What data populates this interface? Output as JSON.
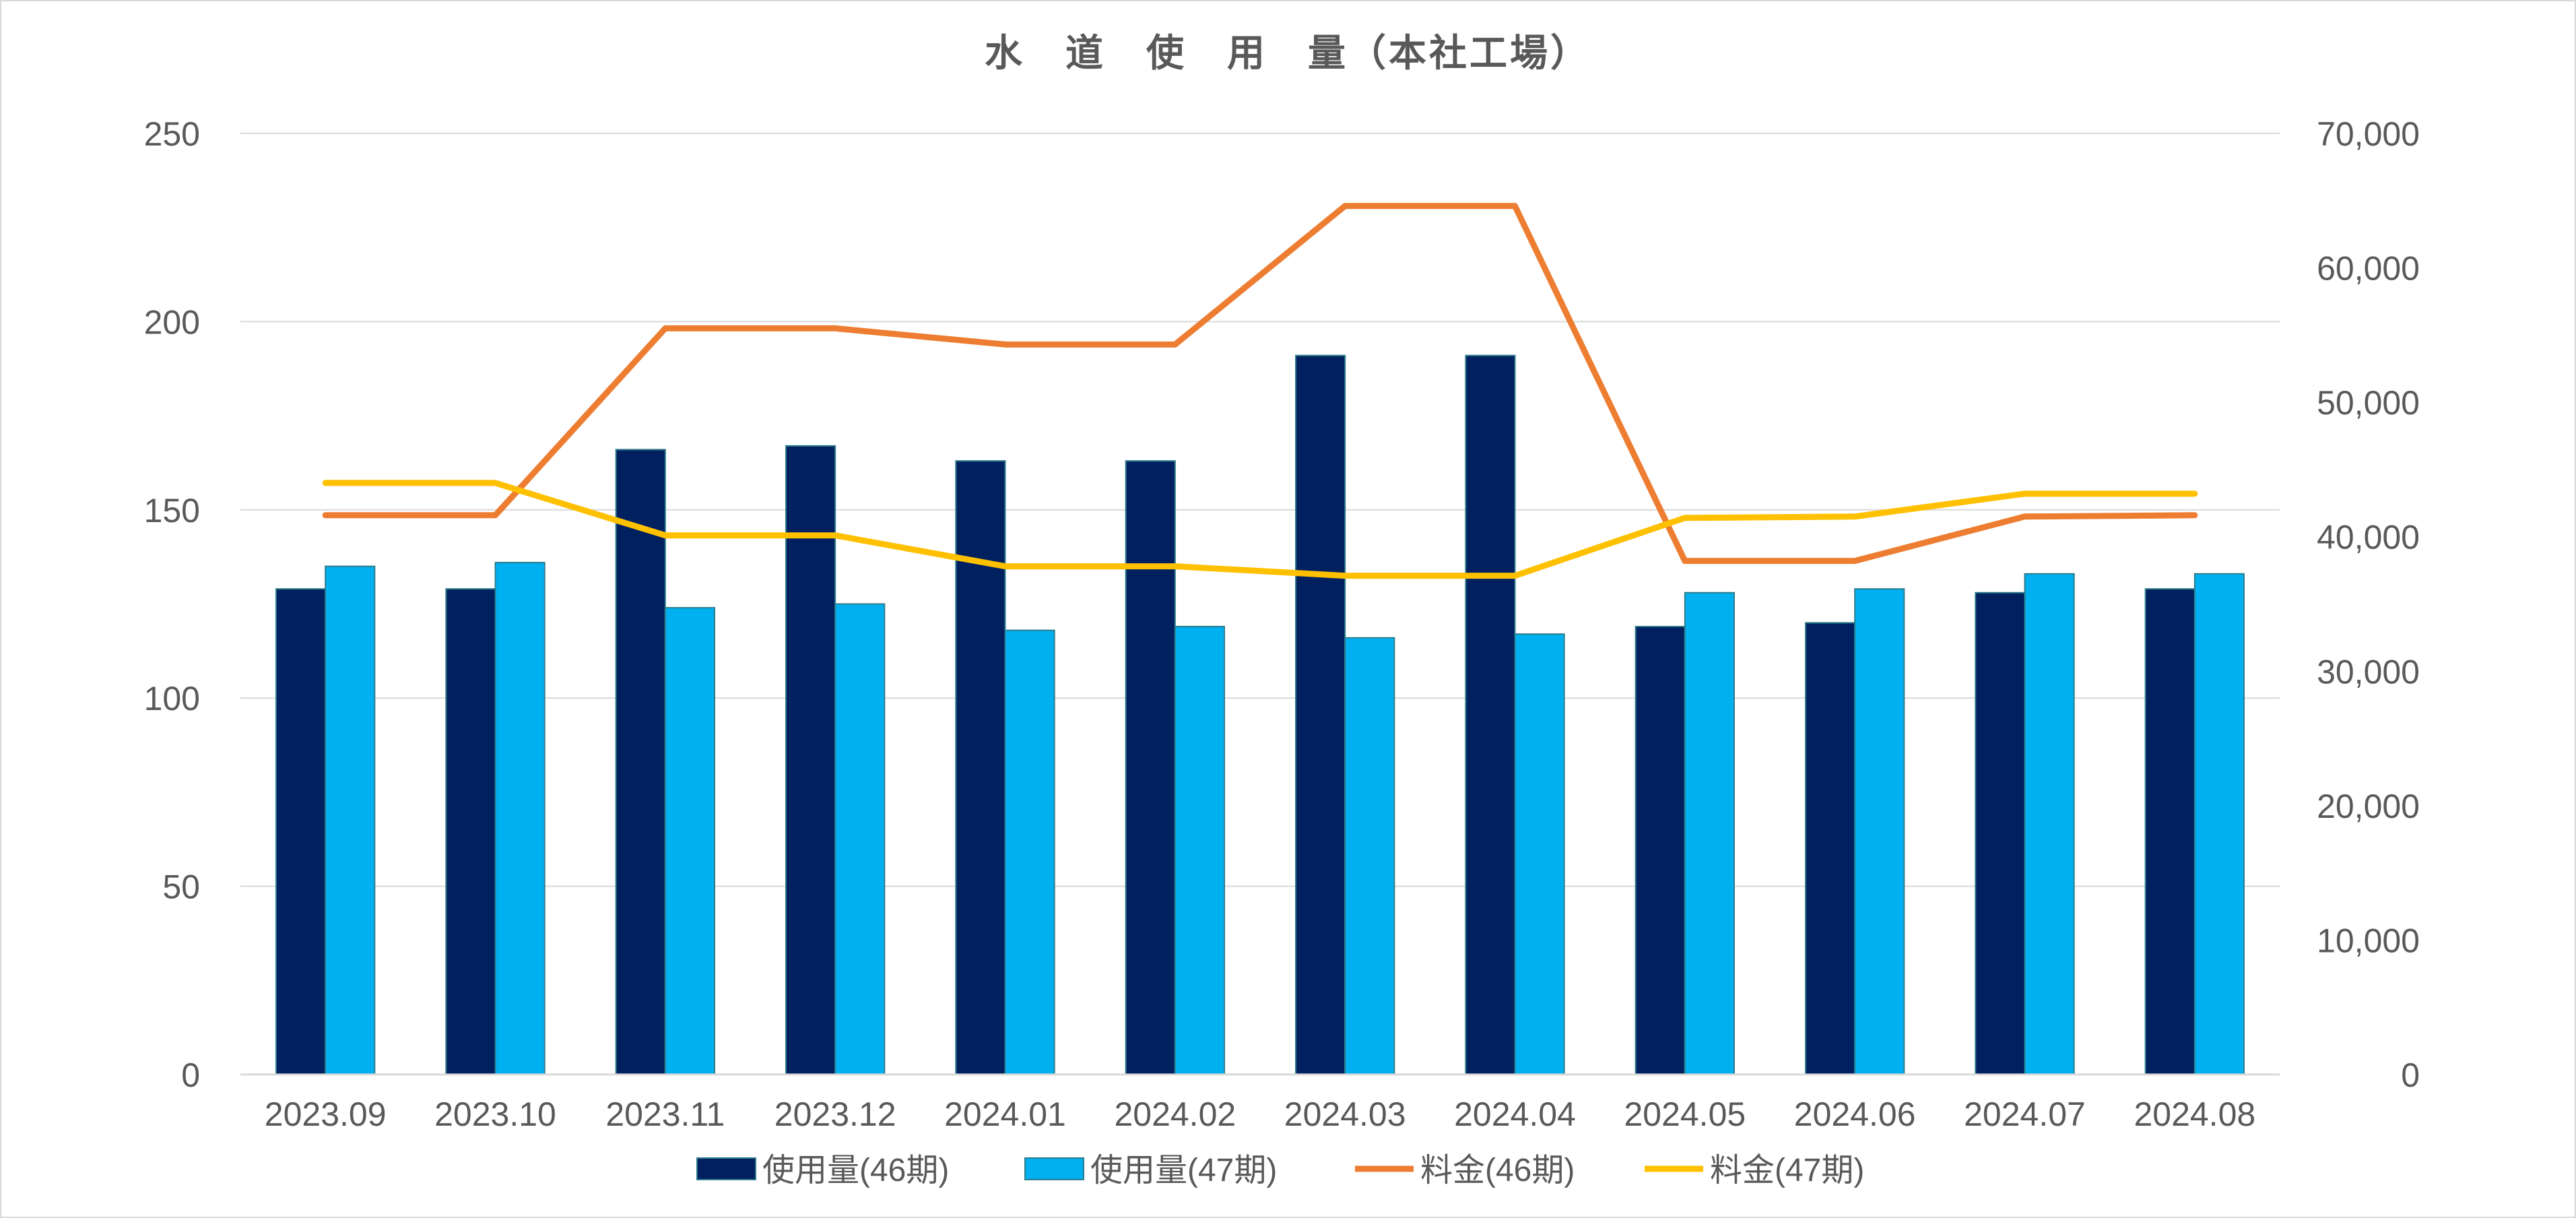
{
  "chart_data": {
    "type": "bar",
    "title": "水　道　使　用　量（本社工場）",
    "categories": [
      "2023.09",
      "2023.10",
      "2023.11",
      "2023.12",
      "2024.01",
      "2024.02",
      "2024.03",
      "2024.04",
      "2024.05",
      "2024.06",
      "2024.07",
      "2024.08"
    ],
    "series": [
      {
        "name": "使用量(46期)",
        "type": "bar",
        "axis": "left",
        "color": "#002060",
        "values": [
          129,
          129,
          166,
          167,
          163,
          163,
          191,
          191,
          119,
          120,
          128,
          129
        ]
      },
      {
        "name": "使用量(47期)",
        "type": "bar",
        "axis": "left",
        "color": "#00b0f0",
        "values": [
          135,
          136,
          124,
          125,
          118,
          119,
          116,
          117,
          128,
          129,
          133,
          133
        ]
      },
      {
        "name": "料金(46期)",
        "type": "line",
        "axis": "right",
        "color": "#ed7d31",
        "values": [
          41600,
          41600,
          55500,
          55500,
          54300,
          54300,
          64600,
          64600,
          38200,
          38200,
          41500,
          41600
        ]
      },
      {
        "name": "料金(47期)",
        "type": "line",
        "axis": "right",
        "color": "#ffc000",
        "values": [
          44000,
          44000,
          40100,
          40100,
          37800,
          37800,
          37100,
          37100,
          41400,
          41500,
          43200,
          43200
        ]
      }
    ],
    "y_left": {
      "min": 0,
      "max": 250,
      "ticks": [
        "0",
        "50",
        "100",
        "150",
        "200",
        "250"
      ]
    },
    "y_right": {
      "min": 0,
      "max": 70000,
      "ticks": [
        "0",
        "10,000",
        "20,000",
        "30,000",
        "40,000",
        "50,000",
        "60,000",
        "70,000"
      ]
    },
    "grid": true,
    "legend": "bottom"
  }
}
